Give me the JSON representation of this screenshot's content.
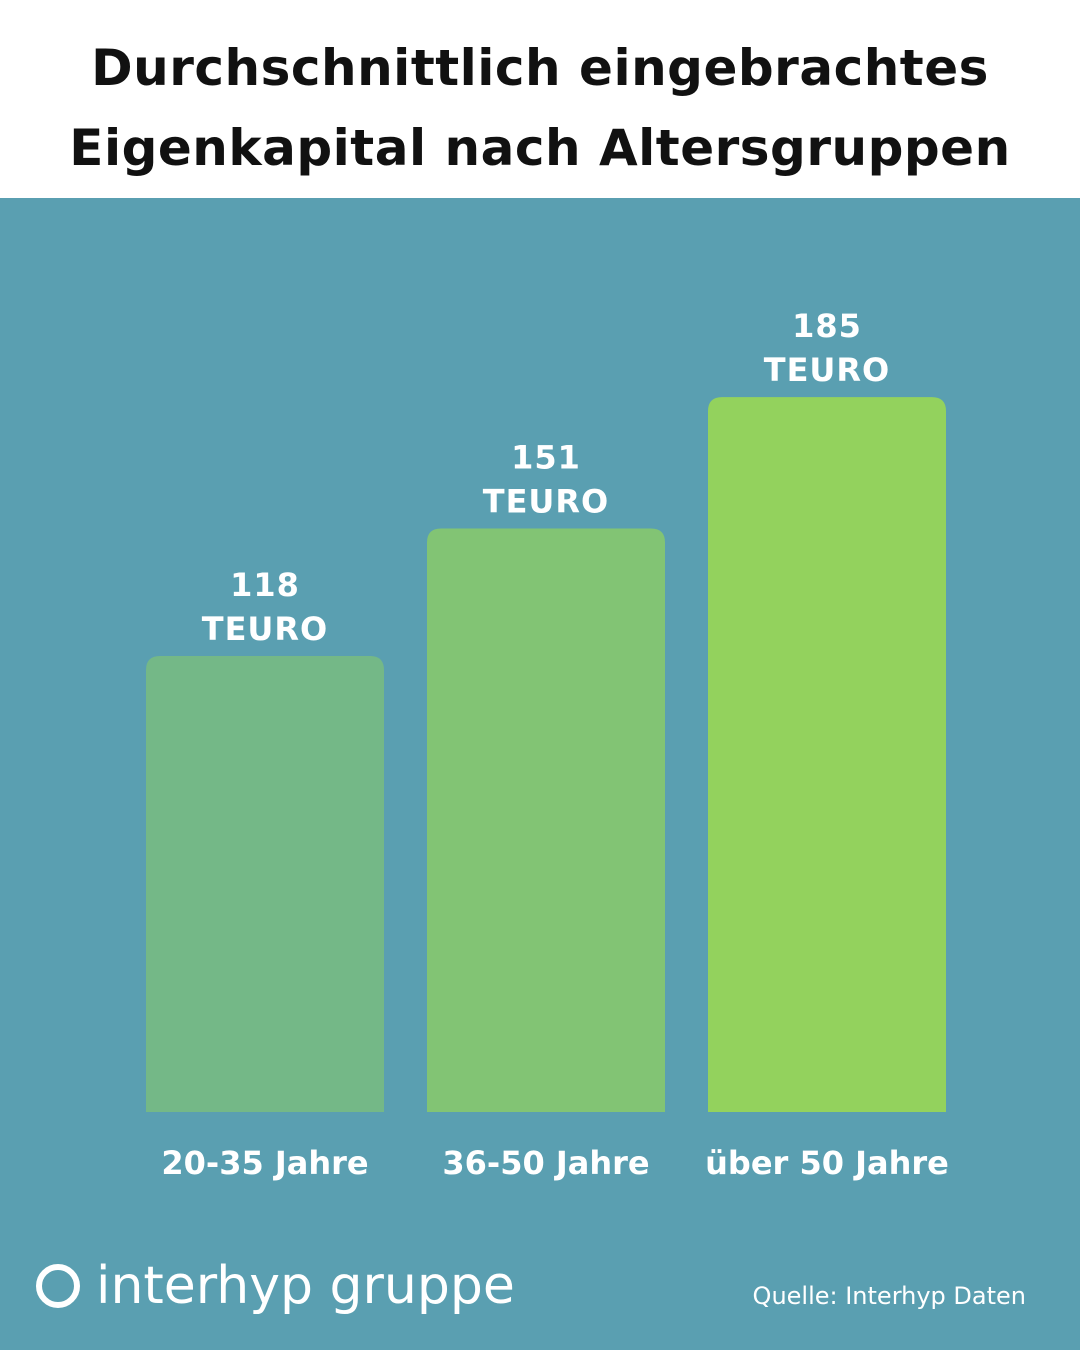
{
  "header": {
    "title_line1": "Durchschnittlich eingebrachtes",
    "title_line2": "Eigenkapital nach Altersgruppen"
  },
  "chart_data": {
    "type": "bar",
    "title": "Durchschnittlich eingebrachtes Eigenkapital nach Altersgruppen",
    "categories": [
      "20-35 Jahre",
      "36-50 Jahre",
      "über 50 Jahre"
    ],
    "values": [
      118,
      151,
      185
    ],
    "value_unit": "TEURO",
    "data_labels": [
      {
        "value": "118",
        "unit": "TEURO"
      },
      {
        "value": "151",
        "unit": "TEURO"
      },
      {
        "value": "185",
        "unit": "TEURO"
      }
    ],
    "bar_colors": [
      "#74b887",
      "#82c474",
      "#93d25d"
    ],
    "background_color": "#5a9fb1",
    "grid": false,
    "legend": "none"
  },
  "footer": {
    "logo_text": "interhyp gruppe",
    "source": "Quelle: Interhyp Daten"
  }
}
